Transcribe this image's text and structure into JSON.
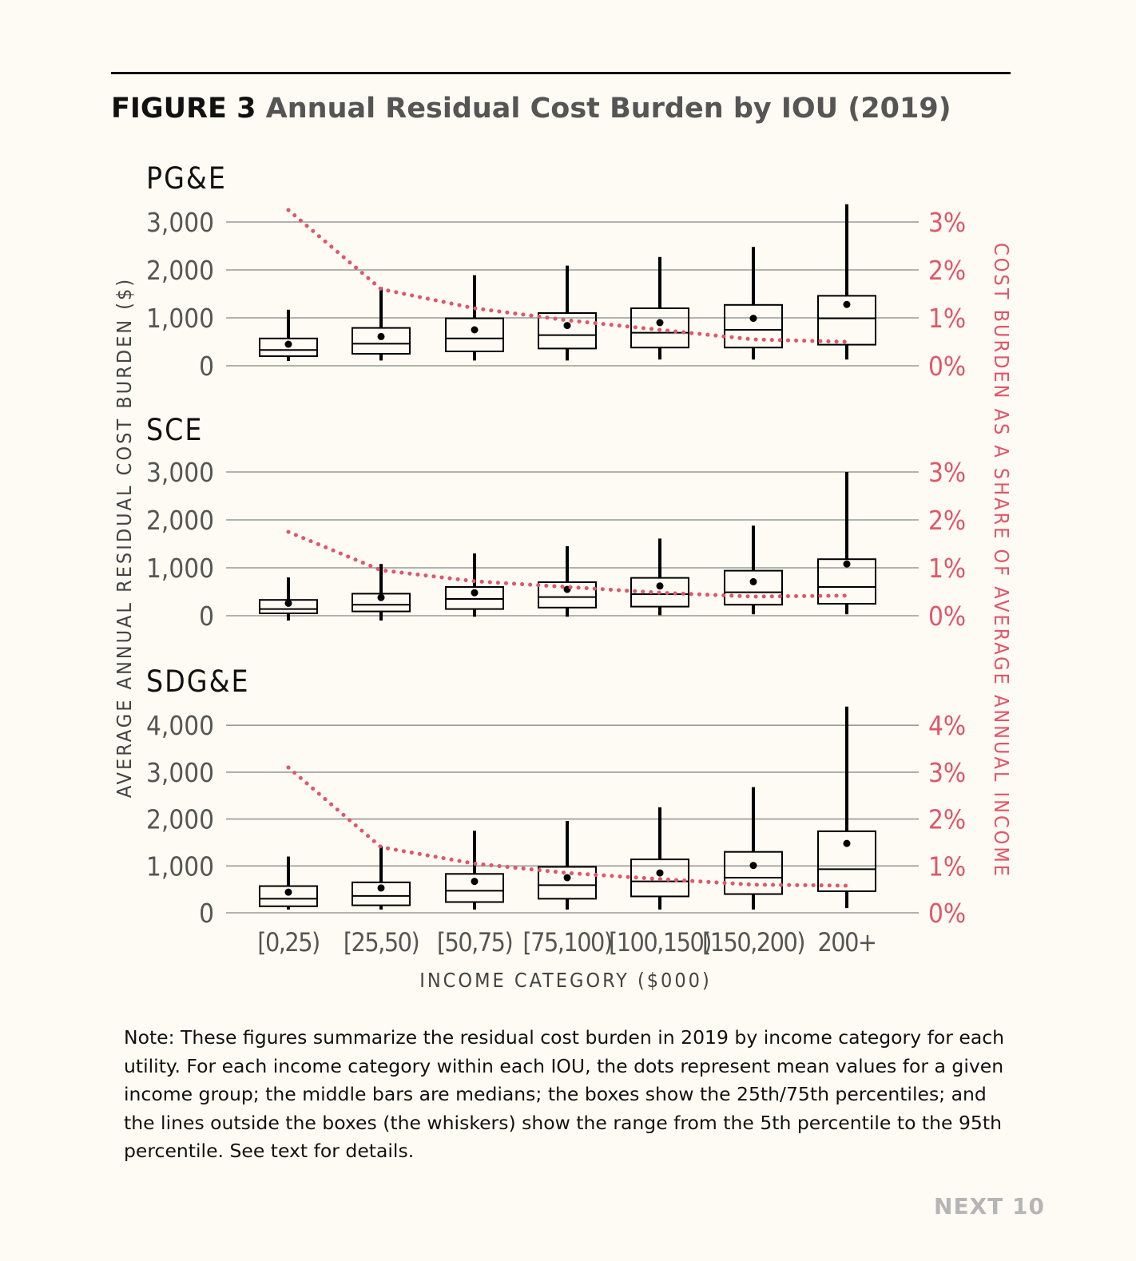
{
  "figure": {
    "number": "FIGURE 3",
    "title": "Annual Residual Cost Burden by IOU (2019)"
  },
  "chart_data": {
    "type": "box",
    "categories": [
      "[0,25)",
      "[25,50)",
      "[50,75)",
      "[75,100)",
      "[100,150)",
      "[150,200)",
      "200+"
    ],
    "xlabel": "INCOME CATEGORY ($000)",
    "ylabel": "AVERAGE ANNUAL RESIDUAL COST BURDEN ($)",
    "y2label": "COST BURDEN AS A SHARE OF AVERAGE ANNUAL INCOME",
    "colors": {
      "box": "#111111",
      "share_line": "#e0566b",
      "grid": "#9a9a9a"
    },
    "panels": [
      {
        "name": "PG&E",
        "ylim": [
          0,
          3000
        ],
        "yticks": [
          0,
          1000,
          2000,
          3000
        ],
        "yticklabels": [
          "0",
          "1,000",
          "2,000",
          "3,000"
        ],
        "y2ticks": [
          0,
          1,
          2,
          3
        ],
        "y2ticklabels": [
          "0%",
          "1%",
          "2%",
          "3%"
        ],
        "boxes": [
          {
            "p5": 100,
            "q1": 200,
            "median": 330,
            "q3": 570,
            "p95": 1170,
            "mean": 450
          },
          {
            "p5": 110,
            "q1": 250,
            "median": 460,
            "q3": 790,
            "p95": 1640,
            "mean": 610
          },
          {
            "p5": 110,
            "q1": 300,
            "median": 570,
            "q3": 990,
            "p95": 1890,
            "mean": 750
          },
          {
            "p5": 110,
            "q1": 360,
            "median": 640,
            "q3": 1100,
            "p95": 2090,
            "mean": 840
          },
          {
            "p5": 130,
            "q1": 380,
            "median": 690,
            "q3": 1200,
            "p95": 2270,
            "mean": 900
          },
          {
            "p5": 130,
            "q1": 380,
            "median": 750,
            "q3": 1270,
            "p95": 2480,
            "mean": 990
          },
          {
            "p5": 130,
            "q1": 440,
            "median": 990,
            "q3": 1460,
            "p95": 3370,
            "mean": 1280
          }
        ],
        "share_pct": [
          3.25,
          1.6,
          1.2,
          0.95,
          0.75,
          0.55,
          0.5
        ]
      },
      {
        "name": "SCE",
        "ylim": [
          0,
          3000
        ],
        "yticks": [
          0,
          1000,
          2000,
          3000
        ],
        "yticklabels": [
          "0",
          "1,000",
          "2,000",
          "3,000"
        ],
        "y2ticks": [
          0,
          1,
          2,
          3
        ],
        "y2ticklabels": [
          "0%",
          "1%",
          "2%",
          "3%"
        ],
        "boxes": [
          {
            "p5": -100,
            "q1": 50,
            "median": 140,
            "q3": 330,
            "p95": 800,
            "mean": 260
          },
          {
            "p5": -100,
            "q1": 90,
            "median": 230,
            "q3": 460,
            "p95": 1080,
            "mean": 380
          },
          {
            "p5": -20,
            "q1": 140,
            "median": 350,
            "q3": 600,
            "p95": 1300,
            "mean": 480
          },
          {
            "p5": -20,
            "q1": 170,
            "median": 390,
            "q3": 700,
            "p95": 1450,
            "mean": 550
          },
          {
            "p5": 10,
            "q1": 190,
            "median": 450,
            "q3": 790,
            "p95": 1610,
            "mean": 620
          },
          {
            "p5": 30,
            "q1": 230,
            "median": 490,
            "q3": 940,
            "p95": 1880,
            "mean": 710
          },
          {
            "p5": 30,
            "q1": 250,
            "median": 600,
            "q3": 1180,
            "p95": 3000,
            "mean": 1080
          }
        ],
        "share_pct": [
          1.75,
          0.95,
          0.72,
          0.6,
          0.48,
          0.4,
          0.42
        ]
      },
      {
        "name": "SDG&E",
        "ylim": [
          0,
          4000
        ],
        "yticks": [
          0,
          1000,
          2000,
          3000,
          4000
        ],
        "yticklabels": [
          "0",
          "1,000",
          "2,000",
          "3,000",
          "4,000"
        ],
        "y2ticks": [
          0,
          1,
          2,
          3,
          4
        ],
        "y2ticklabels": [
          "0%",
          "1%",
          "2%",
          "3%",
          "4%"
        ],
        "boxes": [
          {
            "p5": 70,
            "q1": 140,
            "median": 300,
            "q3": 570,
            "p95": 1200,
            "mean": 440
          },
          {
            "p5": 70,
            "q1": 160,
            "median": 360,
            "q3": 650,
            "p95": 1420,
            "mean": 530
          },
          {
            "p5": 70,
            "q1": 230,
            "median": 470,
            "q3": 830,
            "p95": 1750,
            "mean": 670
          },
          {
            "p5": 70,
            "q1": 300,
            "median": 590,
            "q3": 980,
            "p95": 1960,
            "mean": 750
          },
          {
            "p5": 70,
            "q1": 350,
            "median": 670,
            "q3": 1140,
            "p95": 2250,
            "mean": 850
          },
          {
            "p5": 70,
            "q1": 400,
            "median": 750,
            "q3": 1300,
            "p95": 2680,
            "mean": 1010
          },
          {
            "p5": 100,
            "q1": 460,
            "median": 930,
            "q3": 1740,
            "p95": 4400,
            "mean": 1480
          }
        ],
        "share_pct": [
          3.1,
          1.4,
          1.05,
          0.85,
          0.72,
          0.6,
          0.58
        ]
      }
    ]
  },
  "note": "Note: These figures summarize the residual cost burden in 2019 by income category for each utility. For each income category within each IOU, the dots represent mean values for a given income group; the middle bars are medians; the boxes show the 25th/75th percentiles; and the lines outside the boxes (the whiskers) show the range from the 5th percentile to the 95th percentile. See text for details.",
  "footer": "NEXT 10"
}
